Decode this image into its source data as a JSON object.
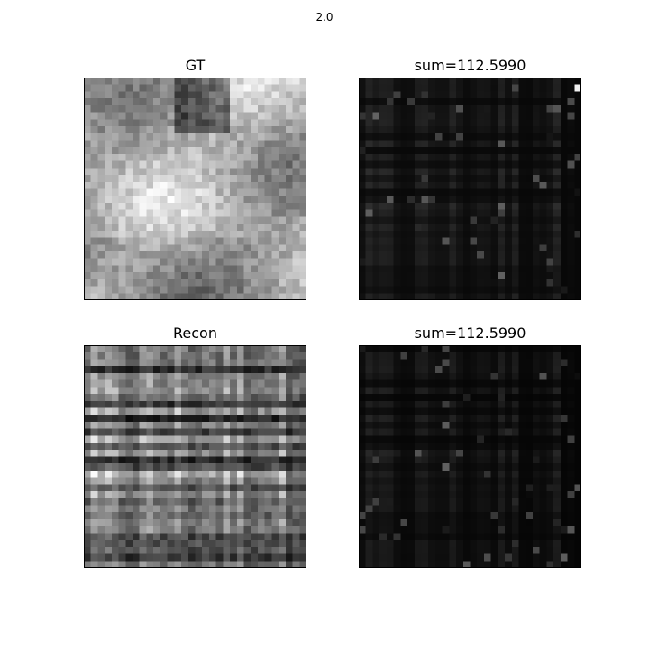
{
  "figure": {
    "suptitle": "2.0",
    "panels": [
      {
        "id": "gt",
        "title": "GT",
        "kind": "natural",
        "colormap": "gray"
      },
      {
        "id": "sum-top",
        "title": "sum=112.5990",
        "kind": "sparse-top",
        "colormap": "gray"
      },
      {
        "id": "recon",
        "title": "Recon",
        "kind": "recon",
        "colormap": "gray"
      },
      {
        "id": "sum-bottom",
        "title": "sum=112.5990",
        "kind": "sparse-bottom",
        "colormap": "gray"
      }
    ]
  }
}
